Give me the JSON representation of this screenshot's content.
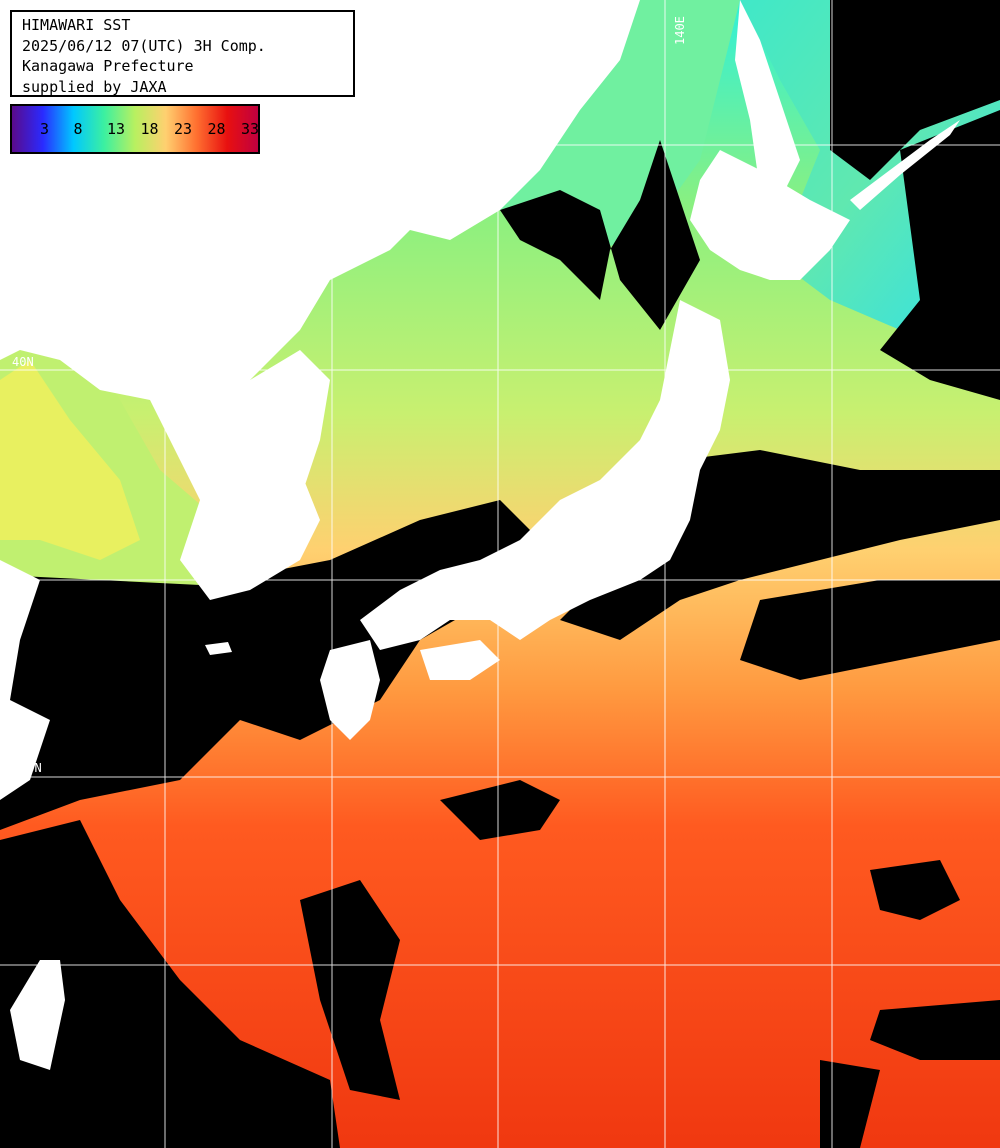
{
  "title_box": {
    "line1": "HIMAWARI SST",
    "line2": "2025/06/12 07(UTC) 3H Comp.",
    "line3": "Kanagawa Prefecture",
    "line4": "supplied by JAXA"
  },
  "legend": {
    "ticks": [
      "3",
      "8",
      "13",
      "18",
      "23",
      "28",
      "33"
    ],
    "colors": [
      "#5a0a8a",
      "#2a2aff",
      "#00c8ff",
      "#3cf0a0",
      "#b8f060",
      "#ffd070",
      "#ff7030",
      "#e81010",
      "#c00040"
    ]
  },
  "grid": {
    "lat_label": "40N",
    "lat_label_2": "30N",
    "lon_label": "140E"
  },
  "colors": {
    "land": "#ffffff",
    "no_data": "#000000",
    "cold_sea": "#30e8d0",
    "mid_sea": "#a8f070",
    "warm_sea": "#ffa040",
    "hot_sea": "#f04010",
    "grid": "#ffffff"
  }
}
